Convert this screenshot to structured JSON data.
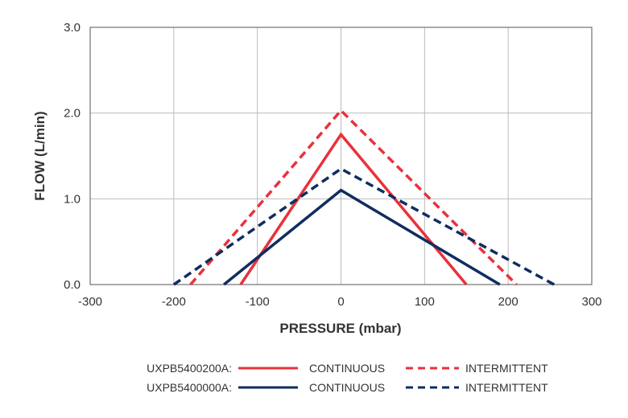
{
  "chart_data": {
    "type": "line",
    "title": "",
    "xlabel": "PRESSURE (mbar)",
    "ylabel": "FLOW (L/min)",
    "xlim": [
      -300,
      300
    ],
    "ylim": [
      0,
      3
    ],
    "xticks": [
      "-300",
      "-200",
      "-100",
      "0",
      "100",
      "200",
      "300"
    ],
    "yticks": [
      "0.0",
      "1.0",
      "2.0",
      "3.0"
    ],
    "grid": true,
    "legend_position": "bottom",
    "series": [
      {
        "model": "UXPB5400200A:",
        "mode": "CONTINUOUS",
        "color": "#e8323c",
        "style": "solid",
        "x": [
          -120,
          0,
          150
        ],
        "y": [
          0,
          1.75,
          0
        ]
      },
      {
        "model": "UXPB5400200A:",
        "mode": "INTERMITTENT",
        "color": "#e8323c",
        "style": "dashed",
        "x": [
          -180,
          0,
          210
        ],
        "y": [
          0,
          2.03,
          0
        ]
      },
      {
        "model": "UXPB5400000A:",
        "mode": "CONTINUOUS",
        "color": "#0f2d5f",
        "style": "solid",
        "x": [
          -140,
          0,
          190
        ],
        "y": [
          0,
          1.1,
          0
        ]
      },
      {
        "model": "UXPB5400000A:",
        "mode": "INTERMITTENT",
        "color": "#0f2d5f",
        "style": "dashed",
        "x": [
          -200,
          0,
          255
        ],
        "y": [
          0,
          1.35,
          0
        ]
      }
    ],
    "legend": [
      {
        "model": "UXPB5400200A:",
        "continuous": "CONTINUOUS",
        "intermittent": "INTERMITTENT",
        "color": "#e8323c"
      },
      {
        "model": "UXPB5400000A:",
        "continuous": "CONTINUOUS",
        "intermittent": "INTERMITTENT",
        "color": "#0f2d5f"
      }
    ]
  }
}
